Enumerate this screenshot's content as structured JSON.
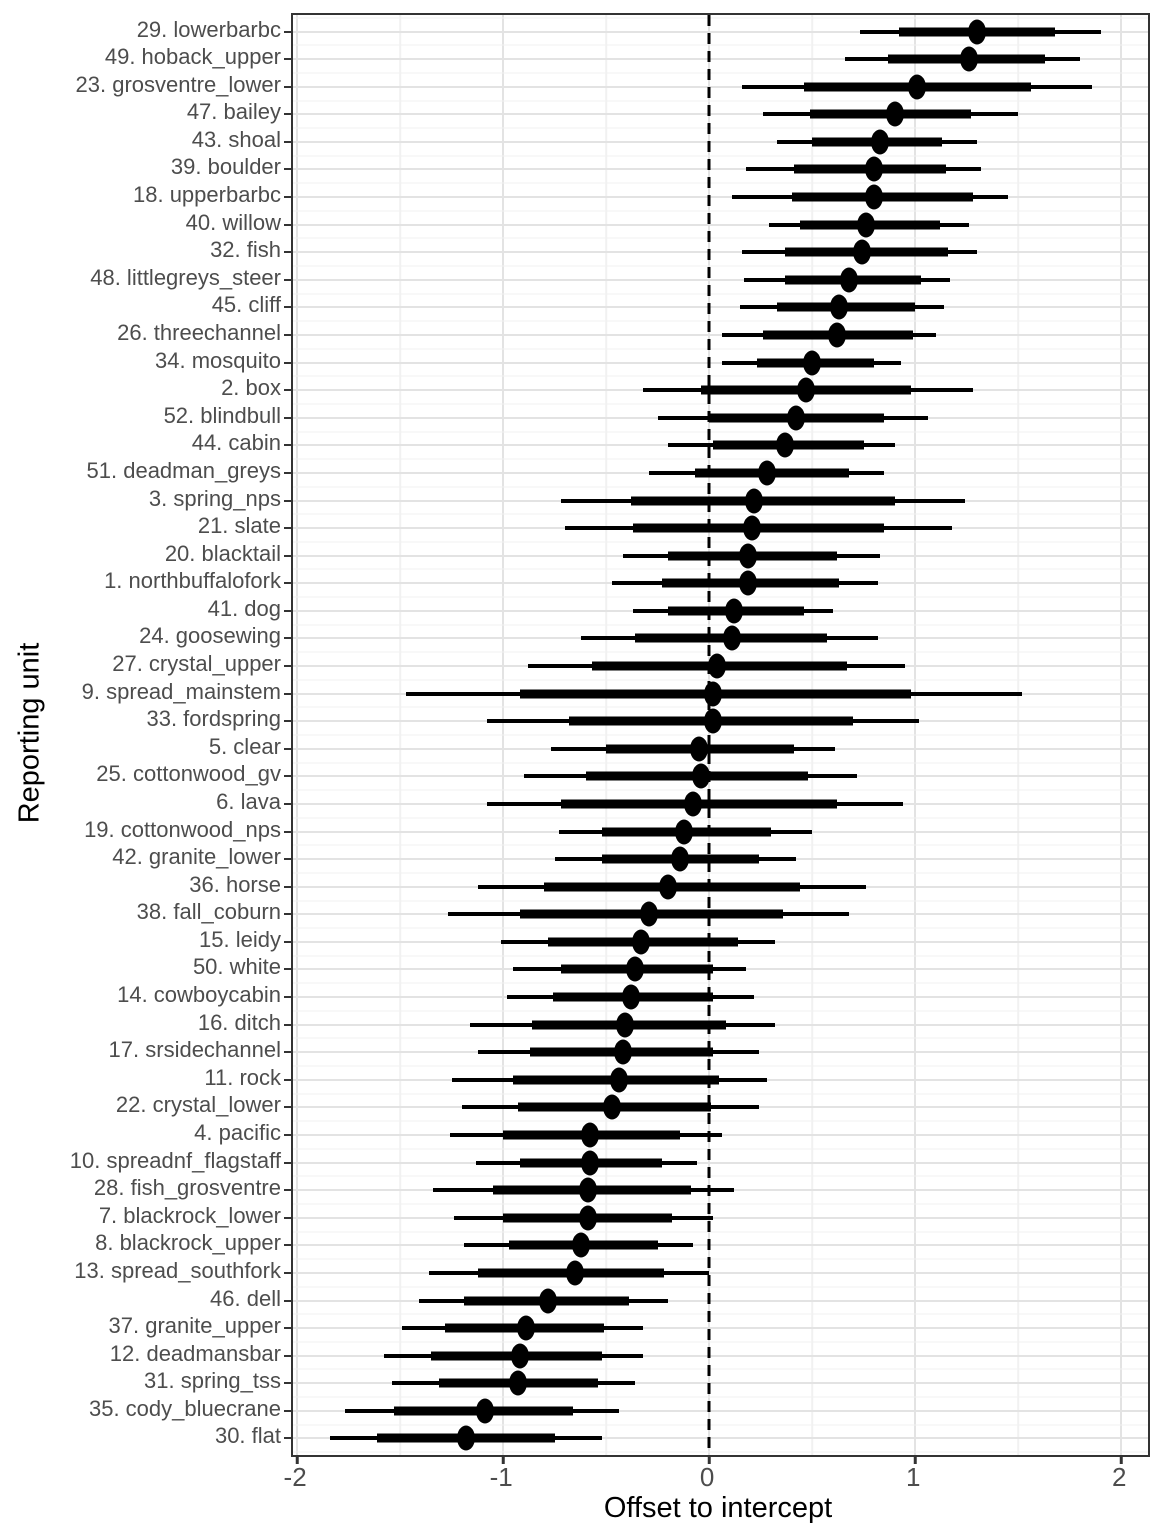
{
  "chart_data": {
    "type": "scatter",
    "subtype": "forest-point-interval",
    "title": "",
    "xlabel": "Offset to intercept",
    "ylabel": "Reporting unit",
    "xlim": [
      -2.02,
      2.13
    ],
    "x_ticks": [
      {
        "value": -2,
        "label": "-2"
      },
      {
        "value": -1,
        "label": "-1"
      },
      {
        "value": 0,
        "label": "0"
      },
      {
        "value": 1,
        "label": "1"
      },
      {
        "value": 2,
        "label": "2"
      }
    ],
    "x_minor_ticks": [
      -1.5,
      -0.5,
      0.5,
      1.5
    ],
    "reference_line_x": 0,
    "grid": true,
    "legend": "none",
    "rows": [
      {
        "label": "29. lowerbarbc",
        "est": 1.3,
        "inner": [
          0.92,
          1.68
        ],
        "outer": [
          0.73,
          1.9
        ]
      },
      {
        "label": "49. hoback_upper",
        "est": 1.26,
        "inner": [
          0.87,
          1.63
        ],
        "outer": [
          0.66,
          1.8
        ]
      },
      {
        "label": "23. grosventre_lower",
        "est": 1.01,
        "inner": [
          0.46,
          1.56
        ],
        "outer": [
          0.16,
          1.86
        ]
      },
      {
        "label": "47. bailey",
        "est": 0.9,
        "inner": [
          0.49,
          1.27
        ],
        "outer": [
          0.26,
          1.5
        ]
      },
      {
        "label": "43. shoal",
        "est": 0.83,
        "inner": [
          0.5,
          1.13
        ],
        "outer": [
          0.33,
          1.3
        ]
      },
      {
        "label": "39. boulder",
        "est": 0.8,
        "inner": [
          0.41,
          1.15
        ],
        "outer": [
          0.18,
          1.32
        ]
      },
      {
        "label": "18. upperbarbc",
        "est": 0.8,
        "inner": [
          0.4,
          1.28
        ],
        "outer": [
          0.11,
          1.45
        ]
      },
      {
        "label": "40. willow",
        "est": 0.76,
        "inner": [
          0.44,
          1.12
        ],
        "outer": [
          0.29,
          1.26
        ]
      },
      {
        "label": "32. fish",
        "est": 0.74,
        "inner": [
          0.37,
          1.16
        ],
        "outer": [
          0.16,
          1.3
        ]
      },
      {
        "label": "48. littlegreys_steer",
        "est": 0.68,
        "inner": [
          0.37,
          1.03
        ],
        "outer": [
          0.17,
          1.17
        ]
      },
      {
        "label": "45. cliff",
        "est": 0.63,
        "inner": [
          0.33,
          1.0
        ],
        "outer": [
          0.15,
          1.14
        ]
      },
      {
        "label": "26. threechannel",
        "est": 0.62,
        "inner": [
          0.26,
          0.99
        ],
        "outer": [
          0.06,
          1.1
        ]
      },
      {
        "label": "34. mosquito",
        "est": 0.5,
        "inner": [
          0.23,
          0.8
        ],
        "outer": [
          0.06,
          0.93
        ]
      },
      {
        "label": "2. box",
        "est": 0.47,
        "inner": [
          -0.04,
          0.98
        ],
        "outer": [
          -0.32,
          1.28
        ]
      },
      {
        "label": "52. blindbull",
        "est": 0.42,
        "inner": [
          0.0,
          0.85
        ],
        "outer": [
          -0.25,
          1.06
        ]
      },
      {
        "label": "44. cabin",
        "est": 0.37,
        "inner": [
          0.02,
          0.75
        ],
        "outer": [
          -0.2,
          0.9
        ]
      },
      {
        "label": "51. deadman_greys",
        "est": 0.28,
        "inner": [
          -0.07,
          0.68
        ],
        "outer": [
          -0.29,
          0.85
        ]
      },
      {
        "label": "3. spring_nps",
        "est": 0.22,
        "inner": [
          -0.38,
          0.9
        ],
        "outer": [
          -0.72,
          1.24
        ]
      },
      {
        "label": "21. slate",
        "est": 0.21,
        "inner": [
          -0.37,
          0.85
        ],
        "outer": [
          -0.7,
          1.18
        ]
      },
      {
        "label": "20. blacktail",
        "est": 0.19,
        "inner": [
          -0.2,
          0.62
        ],
        "outer": [
          -0.42,
          0.83
        ]
      },
      {
        "label": "1. northbuffalofork",
        "est": 0.19,
        "inner": [
          -0.23,
          0.63
        ],
        "outer": [
          -0.47,
          0.82
        ]
      },
      {
        "label": "41. dog",
        "est": 0.12,
        "inner": [
          -0.2,
          0.46
        ],
        "outer": [
          -0.37,
          0.6
        ]
      },
      {
        "label": "24. goosewing",
        "est": 0.11,
        "inner": [
          -0.36,
          0.57
        ],
        "outer": [
          -0.62,
          0.82
        ]
      },
      {
        "label": "27. crystal_upper",
        "est": 0.04,
        "inner": [
          -0.57,
          0.67
        ],
        "outer": [
          -0.88,
          0.95
        ]
      },
      {
        "label": "9. spread_mainstem",
        "est": 0.02,
        "inner": [
          -0.92,
          0.98
        ],
        "outer": [
          -1.47,
          1.52
        ]
      },
      {
        "label": "33. fordspring",
        "est": 0.02,
        "inner": [
          -0.68,
          0.7
        ],
        "outer": [
          -1.08,
          1.02
        ]
      },
      {
        "label": "5. clear",
        "est": -0.05,
        "inner": [
          -0.5,
          0.41
        ],
        "outer": [
          -0.77,
          0.61
        ]
      },
      {
        "label": "25. cottonwood_gv",
        "est": -0.04,
        "inner": [
          -0.6,
          0.48
        ],
        "outer": [
          -0.9,
          0.72
        ]
      },
      {
        "label": "6. lava",
        "est": -0.08,
        "inner": [
          -0.72,
          0.62
        ],
        "outer": [
          -1.08,
          0.94
        ]
      },
      {
        "label": "19. cottonwood_nps",
        "est": -0.12,
        "inner": [
          -0.52,
          0.3
        ],
        "outer": [
          -0.73,
          0.5
        ]
      },
      {
        "label": "42. granite_lower",
        "est": -0.14,
        "inner": [
          -0.52,
          0.24
        ],
        "outer": [
          -0.75,
          0.42
        ]
      },
      {
        "label": "36. horse",
        "est": -0.2,
        "inner": [
          -0.8,
          0.44
        ],
        "outer": [
          -1.12,
          0.76
        ]
      },
      {
        "label": "38. fall_coburn",
        "est": -0.29,
        "inner": [
          -0.92,
          0.36
        ],
        "outer": [
          -1.27,
          0.68
        ]
      },
      {
        "label": "15. leidy",
        "est": -0.33,
        "inner": [
          -0.78,
          0.14
        ],
        "outer": [
          -1.01,
          0.32
        ]
      },
      {
        "label": "50. white",
        "est": -0.36,
        "inner": [
          -0.72,
          0.02
        ],
        "outer": [
          -0.95,
          0.18
        ]
      },
      {
        "label": "14. cowboycabin",
        "est": -0.38,
        "inner": [
          -0.76,
          0.02
        ],
        "outer": [
          -0.98,
          0.22
        ]
      },
      {
        "label": "16. ditch",
        "est": -0.41,
        "inner": [
          -0.86,
          0.08
        ],
        "outer": [
          -1.16,
          0.32
        ]
      },
      {
        "label": "17. srsidechannel",
        "est": -0.42,
        "inner": [
          -0.87,
          0.02
        ],
        "outer": [
          -1.12,
          0.24
        ]
      },
      {
        "label": "11. rock",
        "est": -0.44,
        "inner": [
          -0.95,
          0.05
        ],
        "outer": [
          -1.25,
          0.28
        ]
      },
      {
        "label": "22. crystal_lower",
        "est": -0.47,
        "inner": [
          -0.93,
          0.01
        ],
        "outer": [
          -1.2,
          0.24
        ]
      },
      {
        "label": "4. pacific",
        "est": -0.58,
        "inner": [
          -1.0,
          -0.14
        ],
        "outer": [
          -1.26,
          0.06
        ]
      },
      {
        "label": "10. spreadnf_flagstaff",
        "est": -0.58,
        "inner": [
          -0.92,
          -0.23
        ],
        "outer": [
          -1.13,
          -0.06
        ]
      },
      {
        "label": "28. fish_grosventre",
        "est": -0.59,
        "inner": [
          -1.05,
          -0.09
        ],
        "outer": [
          -1.34,
          0.12
        ]
      },
      {
        "label": "7. blackrock_lower",
        "est": -0.59,
        "inner": [
          -1.0,
          -0.18
        ],
        "outer": [
          -1.24,
          0.02
        ]
      },
      {
        "label": "8. blackrock_upper",
        "est": -0.62,
        "inner": [
          -0.97,
          -0.25
        ],
        "outer": [
          -1.19,
          -0.08
        ]
      },
      {
        "label": "13. spread_southfork",
        "est": -0.65,
        "inner": [
          -1.12,
          -0.22
        ],
        "outer": [
          -1.36,
          0.0
        ]
      },
      {
        "label": "46. dell",
        "est": -0.78,
        "inner": [
          -1.19,
          -0.39
        ],
        "outer": [
          -1.41,
          -0.2
        ]
      },
      {
        "label": "37. granite_upper",
        "est": -0.89,
        "inner": [
          -1.28,
          -0.51
        ],
        "outer": [
          -1.49,
          -0.32
        ]
      },
      {
        "label": "12. deadmansbar",
        "est": -0.92,
        "inner": [
          -1.35,
          -0.52
        ],
        "outer": [
          -1.58,
          -0.32
        ]
      },
      {
        "label": "31. spring_tss",
        "est": -0.93,
        "inner": [
          -1.31,
          -0.54
        ],
        "outer": [
          -1.54,
          -0.36
        ]
      },
      {
        "label": "35. cody_bluecrane",
        "est": -1.09,
        "inner": [
          -1.53,
          -0.66
        ],
        "outer": [
          -1.77,
          -0.44
        ]
      },
      {
        "label": "30. flat",
        "est": -1.18,
        "inner": [
          -1.61,
          -0.75
        ],
        "outer": [
          -1.84,
          -0.52
        ]
      }
    ]
  },
  "styles": {
    "point_color": "#000000",
    "interval_color": "#000000",
    "reference_line_color": "#000000",
    "grid_major_color": "#e3e3e3",
    "grid_minor_color": "#f1f1f1",
    "panel_border_color": "#333333",
    "tick_mark_color": "#333333",
    "axis_text_color": "#4d4d4d",
    "axis_title_color": "#000000",
    "background_color": "#ffffff"
  }
}
